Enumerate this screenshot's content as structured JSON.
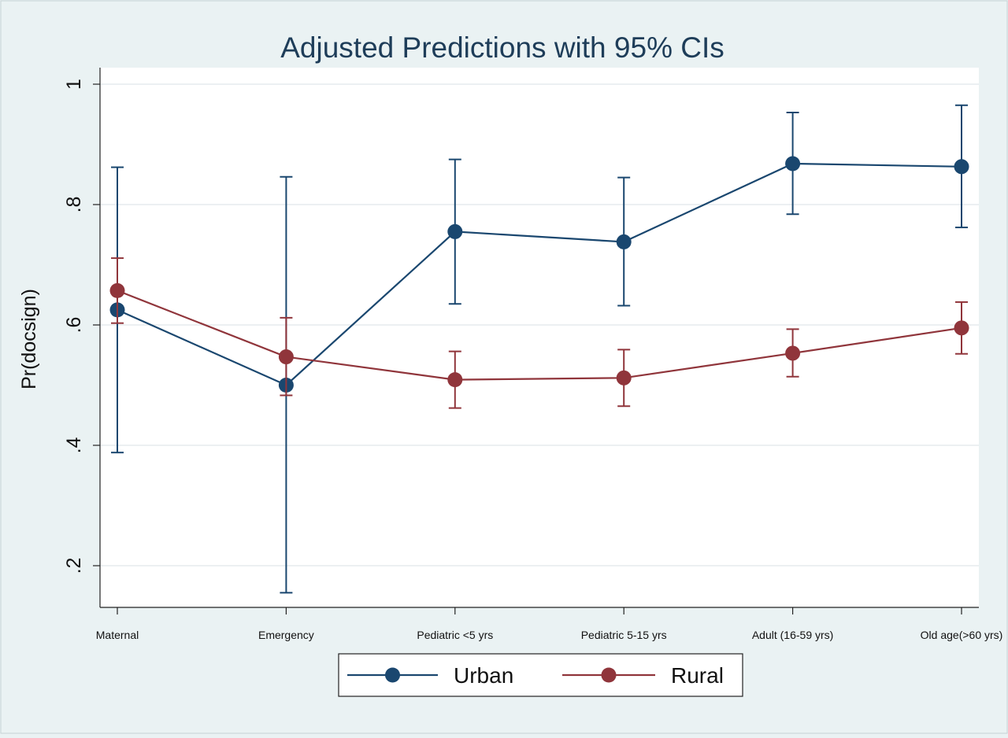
{
  "chart_data": {
    "type": "line",
    "title": "Adjusted Predictions with 95% CIs",
    "ylabel": "Pr(docsign)",
    "xlabel": "",
    "categories": [
      "Maternal",
      "Emergency",
      "Pediatric <5 yrs",
      "Pediatric 5-15 yrs",
      "Adult (16-59 yrs)",
      "Old age(>60 yrs)"
    ],
    "ylim": [
      0.15,
      1.0
    ],
    "yticks": [
      0.2,
      0.4,
      0.6,
      0.8,
      1.0
    ],
    "ytick_labels": [
      ".2",
      ".4",
      ".6",
      ".8",
      "1"
    ],
    "grid": true,
    "legend_position": "bottom",
    "series": [
      {
        "name": "Urban",
        "color": "#1a476f",
        "values": [
          0.625,
          0.5,
          0.755,
          0.738,
          0.868,
          0.863
        ],
        "ci_low": [
          0.388,
          0.155,
          0.635,
          0.632,
          0.784,
          0.762
        ],
        "ci_high": [
          0.862,
          0.846,
          0.875,
          0.845,
          0.953,
          0.965
        ]
      },
      {
        "name": "Rural",
        "color": "#90353b",
        "values": [
          0.657,
          0.547,
          0.509,
          0.512,
          0.553,
          0.595
        ],
        "ci_low": [
          0.603,
          0.483,
          0.462,
          0.465,
          0.514,
          0.552
        ],
        "ci_high": [
          0.711,
          0.612,
          0.556,
          0.559,
          0.593,
          0.638
        ]
      }
    ]
  }
}
